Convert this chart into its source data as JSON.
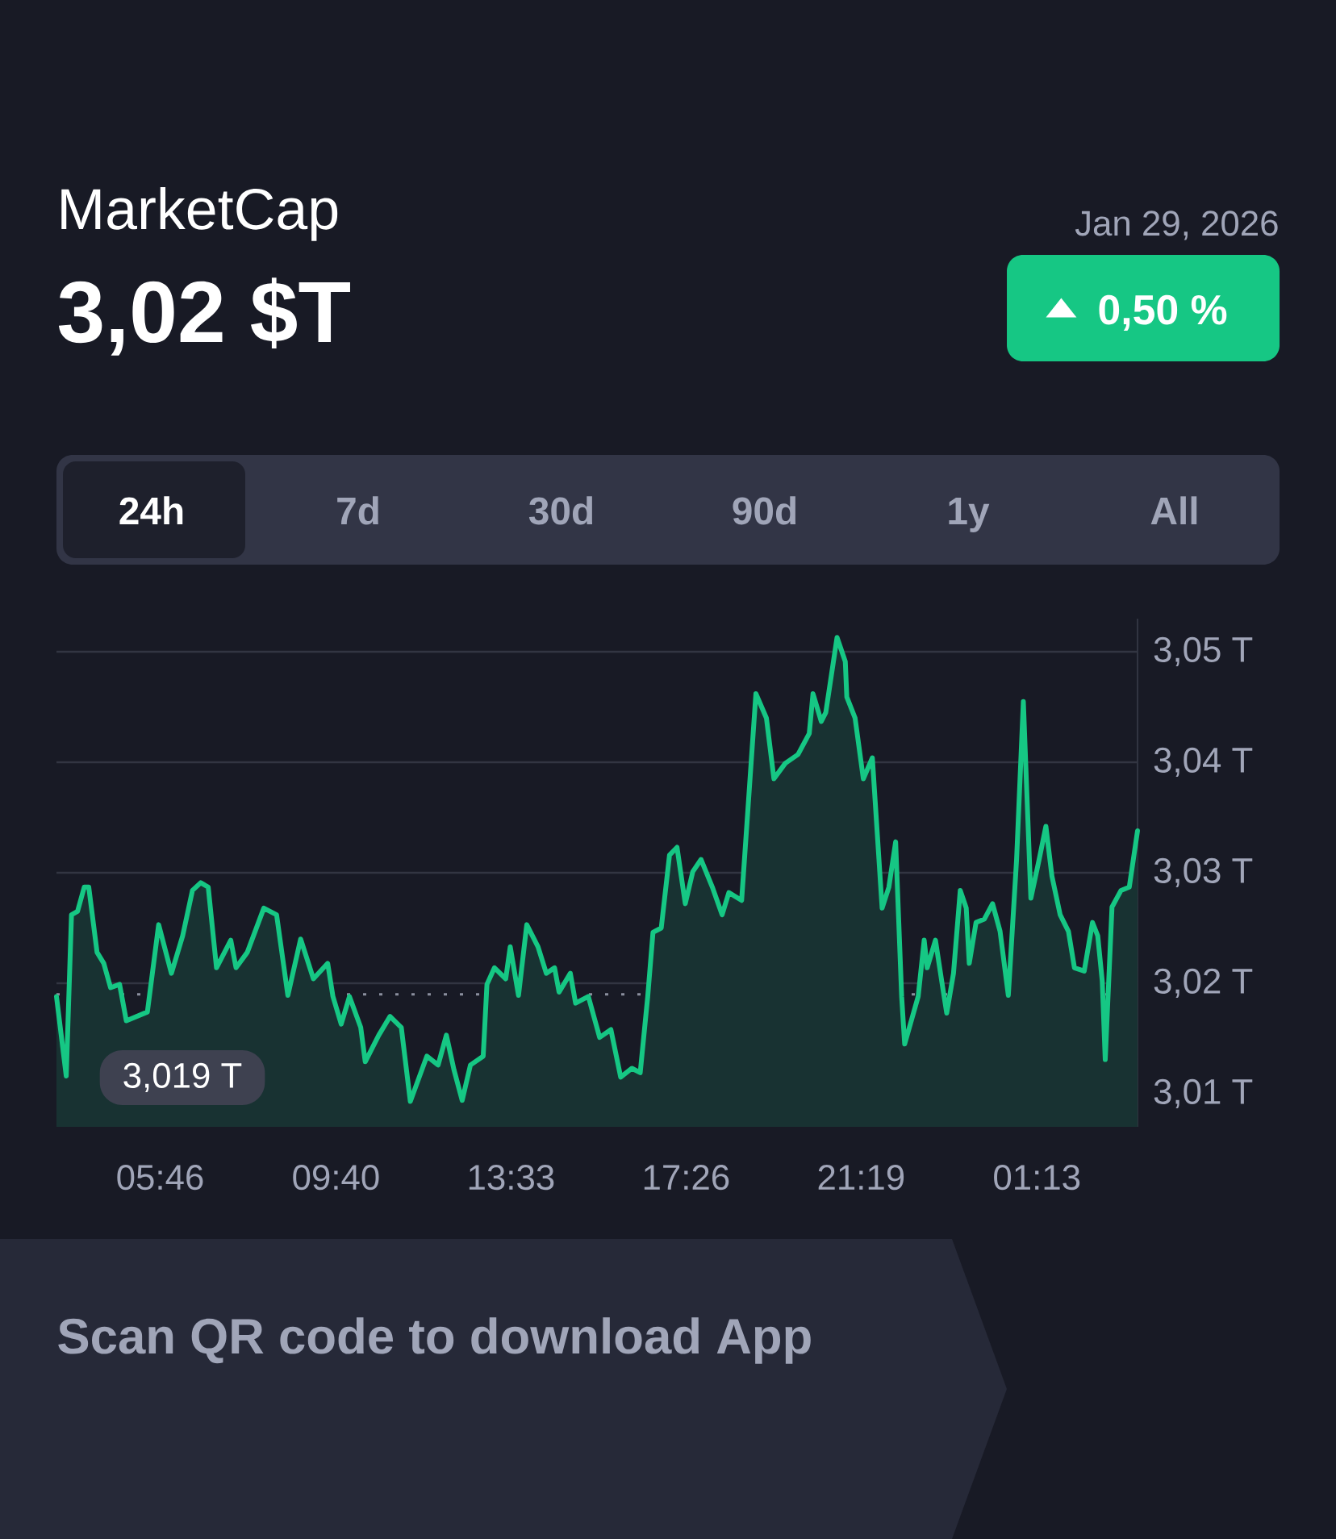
{
  "chart_data": {
    "type": "area",
    "title": "MarketCap",
    "subtitle": "3,02 $T",
    "annotations": [
      "Jan 29, 2026",
      "0,50 %",
      "24h",
      "7d",
      "30d",
      "90d",
      "1y",
      "All",
      "Scan QR code to download App"
    ],
    "x": [
      "2026-01-28T03:28",
      "2026-01-28T03:41",
      "2026-01-28T03:48",
      "2026-01-28T03:56",
      "2026-01-28T04:05",
      "2026-01-28T04:11",
      "2026-01-28T04:22",
      "2026-01-28T04:31",
      "2026-01-28T04:40",
      "2026-01-28T04:52",
      "2026-01-28T05:01",
      "2026-01-28T05:29",
      "2026-01-28T05:44",
      "2026-01-28T06:01",
      "2026-01-28T06:16",
      "2026-01-28T06:29",
      "2026-01-28T06:40",
      "2026-01-28T06:50",
      "2026-01-28T07:01",
      "2026-01-28T07:20",
      "2026-01-28T07:27",
      "2026-01-28T07:42",
      "2026-01-28T08:04",
      "2026-01-28T08:21",
      "2026-01-28T08:36",
      "2026-01-28T08:53",
      "2026-01-28T09:10",
      "2026-01-28T09:29",
      "2026-01-28T09:36",
      "2026-01-28T09:47",
      "2026-01-28T09:58",
      "2026-01-28T10:13",
      "2026-01-28T10:19",
      "2026-01-28T10:37",
      "2026-01-28T10:52",
      "2026-01-28T11:07",
      "2026-01-28T11:19",
      "2026-01-28T11:41",
      "2026-01-28T11:56",
      "2026-01-28T12:07",
      "2026-01-28T12:17",
      "2026-01-28T12:28",
      "2026-01-28T12:39",
      "2026-01-28T12:56",
      "2026-01-28T13:01",
      "2026-01-28T13:11",
      "2026-01-28T13:26",
      "2026-01-28T13:32",
      "2026-01-28T13:43",
      "2026-01-28T13:54",
      "2026-01-28T14:09",
      "2026-01-28T14:20",
      "2026-01-28T14:31",
      "2026-01-28T14:37",
      "2026-01-28T14:52",
      "2026-01-28T14:59",
      "2026-01-28T15:16",
      "2026-01-28T15:31",
      "2026-01-28T15:46",
      "2026-01-28T15:59",
      "2026-01-28T16:14",
      "2026-01-28T16:25",
      "2026-01-28T16:35",
      "2026-01-28T16:42",
      "2026-01-28T16:53",
      "2026-01-28T17:04",
      "2026-01-28T17:14",
      "2026-01-28T17:25",
      "2026-01-28T17:35",
      "2026-01-28T17:46",
      "2026-01-28T18:01",
      "2026-01-28T18:14",
      "2026-01-28T18:23",
      "2026-01-28T18:40",
      "2026-01-28T18:59",
      "2026-01-28T19:13",
      "2026-01-28T19:23",
      "2026-01-28T19:38",
      "2026-01-28T19:55",
      "2026-01-28T20:10",
      "2026-01-28T20:15",
      "2026-01-28T20:26",
      "2026-01-28T20:32",
      "2026-01-28T20:47",
      "2026-01-28T20:58",
      "2026-01-28T21:00",
      "2026-01-28T21:11",
      "2026-01-28T21:22",
      "2026-01-28T21:34",
      "2026-01-28T21:47",
      "2026-01-28T21:56",
      "2026-01-28T22:05",
      "2026-01-28T22:13",
      "2026-01-28T22:17",
      "2026-01-28T22:35",
      "2026-01-28T22:43",
      "2026-01-28T22:47",
      "2026-01-28T22:58",
      "2026-01-28T23:07",
      "2026-01-28T23:13",
      "2026-01-28T23:22",
      "2026-01-28T23:31",
      "2026-01-28T23:39",
      "2026-01-28T23:43",
      "2026-01-28T23:52",
      "2026-01-29T00:03",
      "2026-01-29T00:14",
      "2026-01-29T00:24",
      "2026-01-29T00:35",
      "2026-01-29T00:46",
      "2026-01-29T00:55",
      "2026-01-29T01:05",
      "2026-01-29T01:16",
      "2026-01-29T01:25",
      "2026-01-29T01:33",
      "2026-01-29T01:44",
      "2026-01-29T01:55",
      "2026-01-29T02:03",
      "2026-01-29T02:16",
      "2026-01-29T02:27",
      "2026-01-29T02:34",
      "2026-01-29T02:40",
      "2026-01-29T02:44",
      "2026-01-29T02:53",
      "2026-01-29T03:05",
      "2026-01-29T03:16",
      "2026-01-29T03:27"
    ],
    "series": [
      {
        "color": "#16c784",
        "values": [
          3.0188,
          3.0116,
          3.0262,
          3.0265,
          3.0287,
          3.0287,
          3.0228,
          3.0218,
          3.0196,
          3.0199,
          3.0166,
          3.0174,
          3.0253,
          3.0209,
          3.0243,
          3.0284,
          3.0291,
          3.0287,
          3.0214,
          3.0239,
          3.0214,
          3.0228,
          3.0268,
          3.0262,
          3.0189,
          3.024,
          3.0204,
          3.0218,
          3.0188,
          3.0163,
          3.0188,
          3.016,
          3.0129,
          3.0153,
          3.017,
          3.016,
          3.0093,
          3.0134,
          3.0126,
          3.0153,
          3.0122,
          3.0094,
          3.0126,
          3.0134,
          3.0199,
          3.0214,
          3.0204,
          3.0233,
          3.0189,
          3.0253,
          3.0233,
          3.0209,
          3.0214,
          3.0192,
          3.0209,
          3.0182,
          3.0188,
          3.0151,
          3.0158,
          3.0115,
          3.0123,
          3.0119,
          3.0188,
          3.0246,
          3.025,
          3.0316,
          3.0323,
          3.0272,
          3.0301,
          3.0312,
          3.0287,
          3.0262,
          3.0282,
          3.0275,
          3.0462,
          3.044,
          3.0385,
          3.0399,
          3.0407,
          3.0426,
          3.0462,
          3.0437,
          3.0445,
          3.0513,
          3.0491,
          3.0459,
          3.044,
          3.0385,
          3.0404,
          3.0268,
          3.0287,
          3.0328,
          3.0188,
          3.0145,
          3.0188,
          3.0239,
          3.0214,
          3.0239,
          3.0199,
          3.0173,
          3.0209,
          3.0284,
          3.0268,
          3.0218,
          3.0255,
          3.0258,
          3.0272,
          3.0247,
          3.0189,
          3.0312,
          3.0455,
          3.0277,
          3.0312,
          3.0342,
          3.0297,
          3.0262,
          3.0247,
          3.0214,
          3.0211,
          3.0255,
          3.0243,
          3.0202,
          3.0131,
          3.0269,
          3.0284,
          3.0287,
          3.0338
        ]
      }
    ],
    "xlim": [
      "2026-01-28T03:28",
      "2026-01-29T03:27"
    ],
    "ylim": [
      3.007,
      3.053
    ],
    "xticks": [
      {
        "value": "2026-01-28T05:46",
        "label": "05:46"
      },
      {
        "value": "2026-01-28T09:40",
        "label": "09:40"
      },
      {
        "value": "2026-01-28T13:33",
        "label": "13:33"
      },
      {
        "value": "2026-01-28T17:26",
        "label": "17:26"
      },
      {
        "value": "2026-01-28T21:19",
        "label": "21:19"
      },
      {
        "value": "2026-01-29T01:13",
        "label": "01:13"
      }
    ],
    "yticks": [
      {
        "value": 3.01,
        "label": "3,01 T"
      },
      {
        "value": 3.02,
        "label": "3,02 T"
      },
      {
        "value": 3.03,
        "label": "3,03 T"
      },
      {
        "value": 3.04,
        "label": "3,04 T"
      },
      {
        "value": 3.05,
        "label": "3,05 T"
      }
    ],
    "grid": "y",
    "ref_lines": [
      {
        "axis": "y",
        "value": 3.019,
        "label": "3,019 T",
        "line_style": "dotted",
        "color": "#8a8f9e"
      }
    ]
  }
}
